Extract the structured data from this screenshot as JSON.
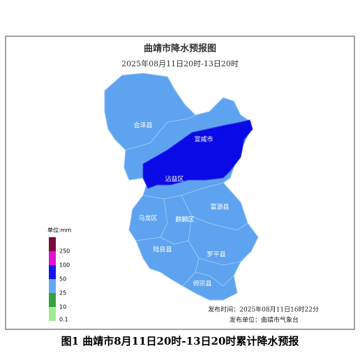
{
  "title": "曲靖市降水预报图",
  "subtitle": "2025年08月11日20时-13日20时",
  "counties": [
    "会泽县",
    "宣威市",
    "沾益区",
    "富源县",
    "马龙区",
    "麒麟区",
    "陆良县",
    "罗平县",
    "师宗县"
  ],
  "legend": {
    "unit": "单位:mm",
    "labels": [
      "250",
      "100",
      "50",
      "25",
      "10",
      "0.1"
    ]
  },
  "release": {
    "time": "发布时间：2025年08月11日16时22分",
    "unit": "发布单位：曲靖市气象台"
  },
  "caption": "图1 曲靖市8月11日20时-13日20时累计降水预报"
}
